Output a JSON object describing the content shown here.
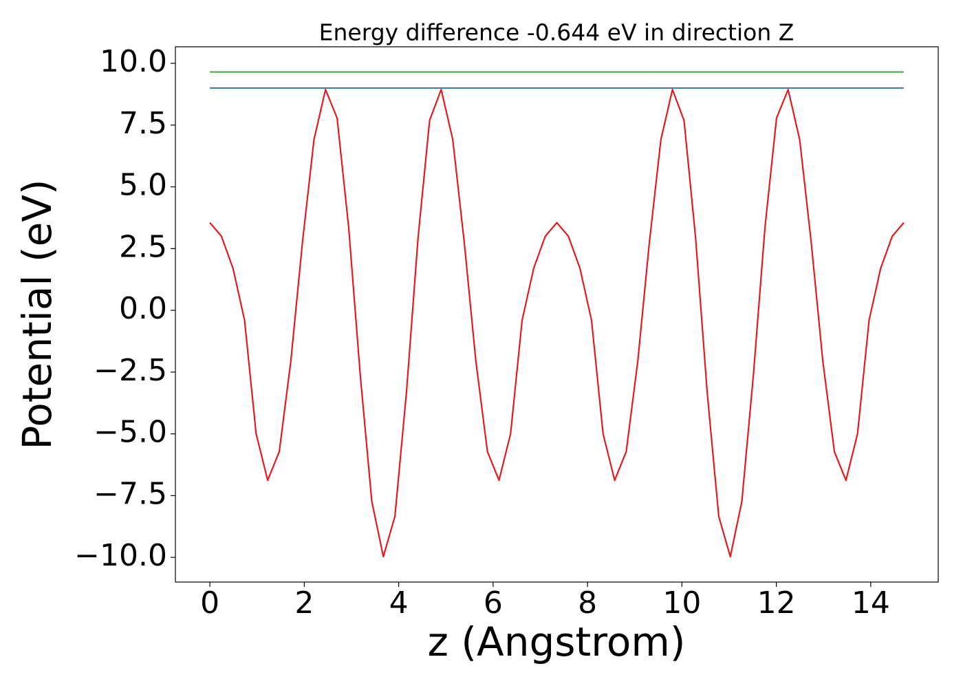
{
  "chart_data": {
    "type": "line",
    "title": "Energy difference -0.644 eV in direction Z",
    "x_label": "z (Angstrom)",
    "y_label": "Potential (eV)",
    "xlim": [
      -0.73,
      15.43
    ],
    "ylim": [
      -11.0,
      10.67
    ],
    "xticks": [
      0,
      2,
      4,
      6,
      8,
      10,
      12,
      14
    ],
    "yticks": [
      {
        "value": -10,
        "label": "−10.0"
      },
      {
        "value": -7.5,
        "label": "−7.5"
      },
      {
        "value": -5,
        "label": "−5.0"
      },
      {
        "value": -2.5,
        "label": "−2.5"
      },
      {
        "value": 0,
        "label": "0.0"
      },
      2.5,
      {
        "value": 5,
        "label": "5.0"
      },
      7.5,
      {
        "value": 10,
        "label": "10.0"
      }
    ],
    "grid": false,
    "series": [
      {
        "color": "#e41a1c",
        "x": [
          0,
          0.245,
          0.49,
          0.735,
          0.98,
          1.225,
          1.47,
          1.715,
          1.96,
          2.205,
          2.45,
          2.695,
          2.94,
          3.185,
          3.43,
          3.675,
          3.92,
          4.165,
          4.41,
          4.655,
          4.9,
          5.145,
          5.39,
          5.635,
          5.88,
          6.125,
          6.37,
          6.615,
          6.86,
          7.105,
          7.35,
          7.595,
          7.84,
          8.085,
          8.33,
          8.575,
          8.82,
          9.065,
          9.31,
          9.555,
          9.8,
          10.045,
          10.29,
          10.535,
          10.78,
          11.025,
          11.27,
          11.515,
          11.76,
          12.005,
          12.25,
          12.495,
          12.74,
          12.985,
          13.23,
          13.475,
          13.72,
          13.965,
          14.21,
          14.455,
          14.7
        ],
        "values": [
          3.55,
          3.0,
          1.7,
          -0.4,
          -5.0,
          -6.88,
          -5.72,
          -2.06,
          2.73,
          6.91,
          8.94,
          7.79,
          3.37,
          -2.6,
          -7.73,
          -9.97,
          -8.34,
          -3.31,
          2.93,
          7.69,
          8.94,
          6.92,
          2.74,
          -2.06,
          -5.72,
          -6.88,
          -5.0,
          -0.4,
          1.7,
          3.0,
          3.55,
          3.0,
          1.7,
          -0.4,
          -5.0,
          -6.88,
          -5.72,
          -2.06,
          2.74,
          6.92,
          8.94,
          7.69,
          2.93,
          -3.31,
          -8.34,
          -9.97,
          -7.73,
          -2.6,
          3.37,
          7.79,
          8.94,
          6.91,
          2.73,
          -2.06,
          -5.72,
          -6.88,
          -5.0,
          -0.4,
          1.7,
          3.0,
          3.55
        ]
      },
      {
        "color": "#4daf4a",
        "x": [
          0,
          14.7
        ],
        "values": [
          9.65,
          9.65
        ]
      },
      {
        "color": "#377eb8",
        "x": [
          0,
          14.7
        ],
        "values": [
          9.0,
          9.0
        ]
      }
    ]
  }
}
